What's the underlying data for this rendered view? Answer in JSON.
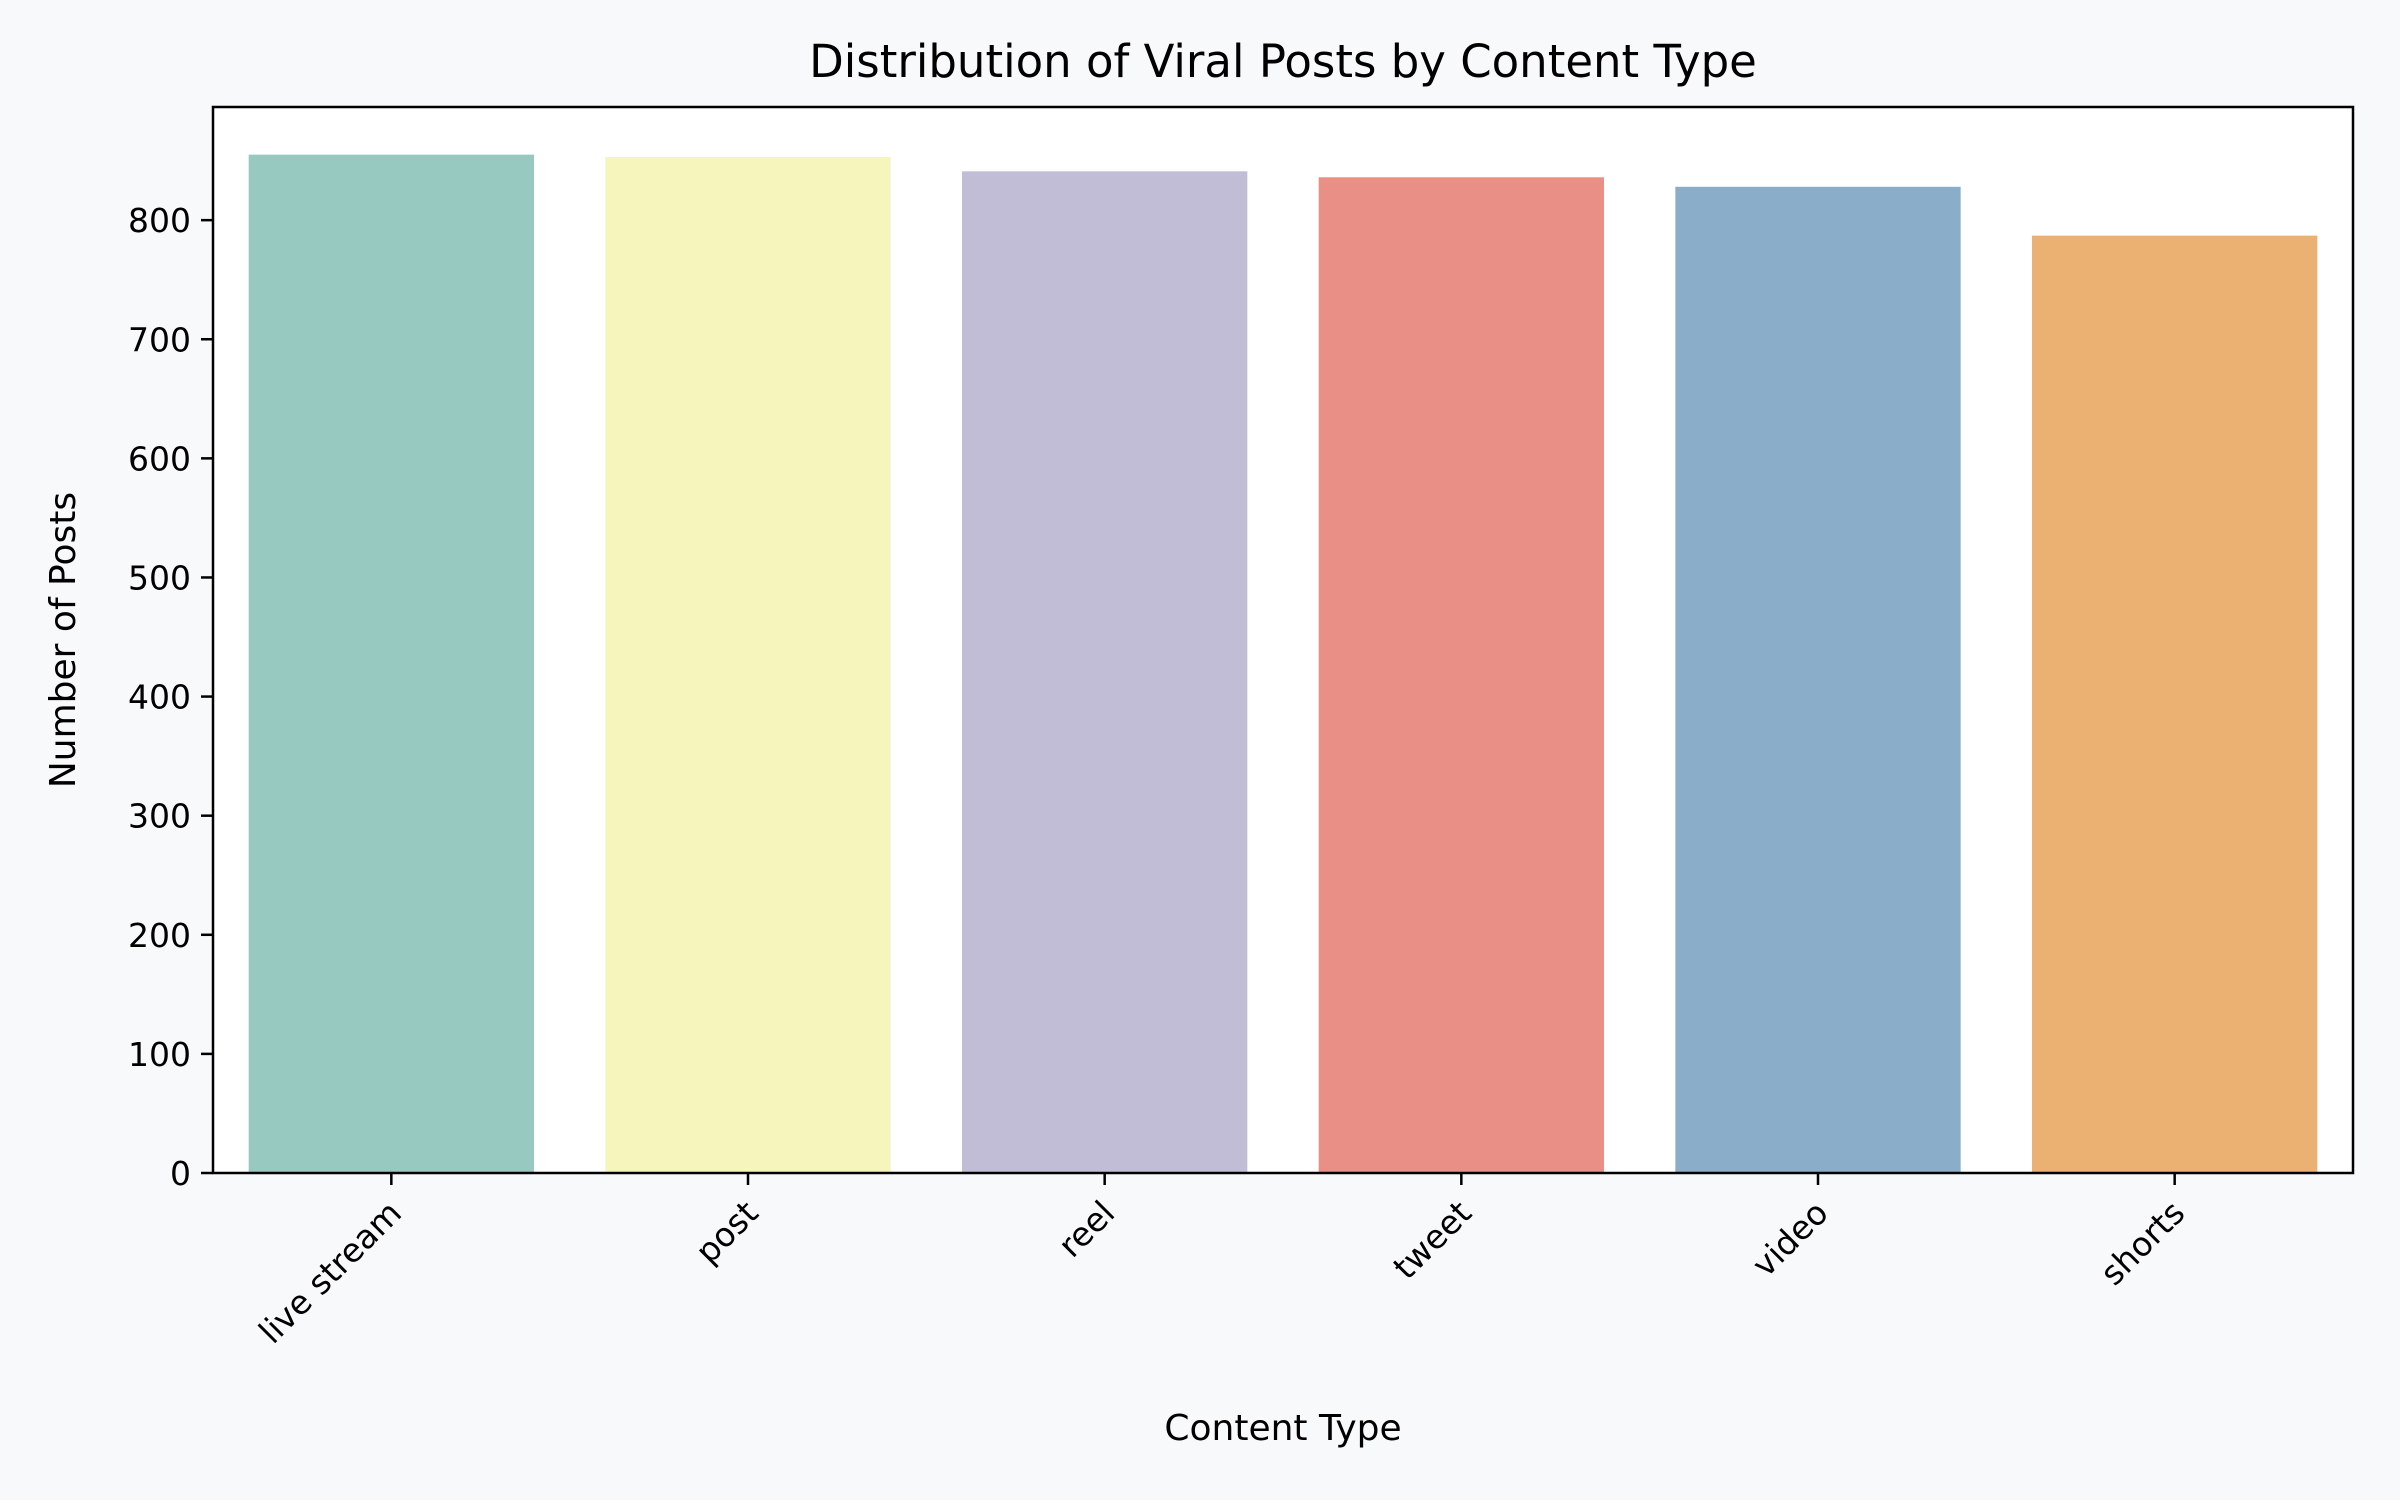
{
  "chart_data": {
    "type": "bar",
    "title": "Distribution of Viral Posts by Content Type",
    "xlabel": "Content Type",
    "ylabel": "Number of Posts",
    "categories": [
      "live stream",
      "post",
      "reel",
      "tweet",
      "video",
      "shorts"
    ],
    "values": [
      855,
      853,
      841,
      836,
      828,
      787
    ],
    "colors": [
      "#98c9c1",
      "#f6f5bc",
      "#c2bdd6",
      "#ea8f85",
      "#8aaec9",
      "#eab173"
    ],
    "ylim": [
      0,
      895
    ],
    "yticks": [
      0,
      100,
      200,
      300,
      400,
      500,
      600,
      700,
      800
    ],
    "grid": false,
    "legend": "none",
    "background": "#f8f9fa",
    "plot_background": "#ffffff"
  }
}
